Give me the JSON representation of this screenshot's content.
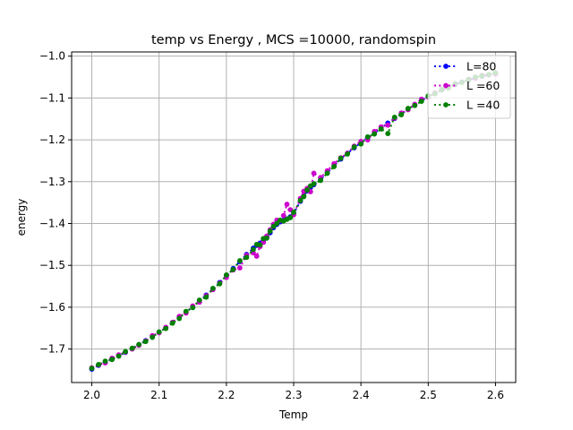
{
  "chart_data": {
    "type": "line",
    "title": "temp vs Energy , MCS =10000, randomspin",
    "xlabel": "Temp",
    "ylabel": "energy",
    "xlim": [
      1.97,
      2.63
    ],
    "ylim": [
      -1.78,
      -0.99
    ],
    "xticks": [
      2.0,
      2.1,
      2.2,
      2.3,
      2.4,
      2.5,
      2.6
    ],
    "xtick_labels": [
      "2.0",
      "2.1",
      "2.2",
      "2.3",
      "2.4",
      "2.5",
      "2.6"
    ],
    "yticks": [
      -1.7,
      -1.6,
      -1.5,
      -1.4,
      -1.3,
      -1.2,
      -1.1,
      -1.0
    ],
    "ytick_labels": [
      "−1.7",
      "−1.6",
      "−1.5",
      "−1.4",
      "−1.3",
      "−1.2",
      "−1.1",
      "−1.0"
    ],
    "grid": true,
    "legend_position": "top-right",
    "x": [
      2.0,
      2.01,
      2.02,
      2.03,
      2.04,
      2.05,
      2.06,
      2.07,
      2.08,
      2.09,
      2.1,
      2.11,
      2.12,
      2.13,
      2.14,
      2.15,
      2.16,
      2.17,
      2.18,
      2.19,
      2.2,
      2.21,
      2.22,
      2.23,
      2.24,
      2.245,
      2.25,
      2.255,
      2.26,
      2.265,
      2.27,
      2.275,
      2.28,
      2.285,
      2.29,
      2.295,
      2.3,
      2.31,
      2.315,
      2.32,
      2.325,
      2.33,
      2.34,
      2.35,
      2.36,
      2.37,
      2.38,
      2.39,
      2.4,
      2.41,
      2.42,
      2.43,
      2.44,
      2.45,
      2.46,
      2.47,
      2.48,
      2.49,
      2.5,
      2.51,
      2.52,
      2.53,
      2.54,
      2.55,
      2.56,
      2.57,
      2.58,
      2.59,
      2.6
    ],
    "series": [
      {
        "name": "L=80",
        "color": "#0000ff",
        "values": [
          -1.748,
          -1.739,
          -1.731,
          -1.724,
          -1.716,
          -1.708,
          -1.699,
          -1.69,
          -1.68,
          -1.67,
          -1.66,
          -1.649,
          -1.637,
          -1.625,
          -1.612,
          -1.599,
          -1.585,
          -1.571,
          -1.556,
          -1.541,
          -1.525,
          -1.508,
          -1.491,
          -1.474,
          -1.459,
          -1.452,
          -1.447,
          -1.44,
          -1.432,
          -1.422,
          -1.41,
          -1.402,
          -1.396,
          -1.392,
          -1.389,
          -1.384,
          -1.376,
          -1.347,
          -1.334,
          -1.322,
          -1.314,
          -1.307,
          -1.295,
          -1.278,
          -1.262,
          -1.246,
          -1.232,
          -1.219,
          -1.207,
          -1.195,
          -1.184,
          -1.172,
          -1.16,
          -1.149,
          -1.138,
          -1.127,
          -1.117,
          -1.106,
          -1.097,
          -1.089,
          -1.081,
          -1.074,
          -1.068,
          -1.062,
          -1.057,
          -1.052,
          -1.048,
          -1.044,
          -1.041
        ]
      },
      {
        "name": "L =60",
        "color": "#cc00cc",
        "values": [
          -1.745,
          -1.738,
          -1.733,
          -1.722,
          -1.714,
          -1.707,
          -1.7,
          -1.691,
          -1.681,
          -1.668,
          -1.661,
          -1.648,
          -1.636,
          -1.622,
          -1.614,
          -1.597,
          -1.588,
          -1.573,
          -1.558,
          -1.543,
          -1.529,
          -1.511,
          -1.506,
          -1.476,
          -1.47,
          -1.478,
          -1.455,
          -1.445,
          -1.43,
          -1.415,
          -1.402,
          -1.392,
          -1.393,
          -1.381,
          -1.354,
          -1.367,
          -1.379,
          -1.34,
          -1.323,
          -1.316,
          -1.324,
          -1.28,
          -1.29,
          -1.274,
          -1.257,
          -1.243,
          -1.232,
          -1.215,
          -1.204,
          -1.2,
          -1.18,
          -1.169,
          -1.165,
          -1.148,
          -1.136,
          -1.128,
          -1.115,
          -1.103,
          -1.098,
          -1.088,
          -1.079,
          -1.074,
          -1.066,
          -1.062,
          -1.055,
          -1.053,
          -1.046,
          -1.045,
          -1.043
        ]
      },
      {
        "name": "L =40",
        "color": "#008000",
        "values": [
          -1.746,
          -1.737,
          -1.729,
          -1.725,
          -1.717,
          -1.706,
          -1.698,
          -1.689,
          -1.682,
          -1.672,
          -1.659,
          -1.651,
          -1.638,
          -1.627,
          -1.61,
          -1.601,
          -1.583,
          -1.576,
          -1.555,
          -1.544,
          -1.523,
          -1.51,
          -1.489,
          -1.481,
          -1.462,
          -1.45,
          -1.451,
          -1.436,
          -1.435,
          -1.418,
          -1.407,
          -1.4,
          -1.392,
          -1.394,
          -1.39,
          -1.386,
          -1.373,
          -1.345,
          -1.336,
          -1.32,
          -1.31,
          -1.305,
          -1.297,
          -1.28,
          -1.264,
          -1.244,
          -1.234,
          -1.217,
          -1.21,
          -1.193,
          -1.186,
          -1.174,
          -1.185,
          -1.146,
          -1.14,
          -1.125,
          -1.118,
          -1.108,
          -1.095,
          -1.09,
          -1.08,
          -1.076,
          -1.066,
          -1.063,
          -1.056,
          -1.05,
          -1.047,
          -1.044,
          -1.04
        ]
      }
    ]
  }
}
